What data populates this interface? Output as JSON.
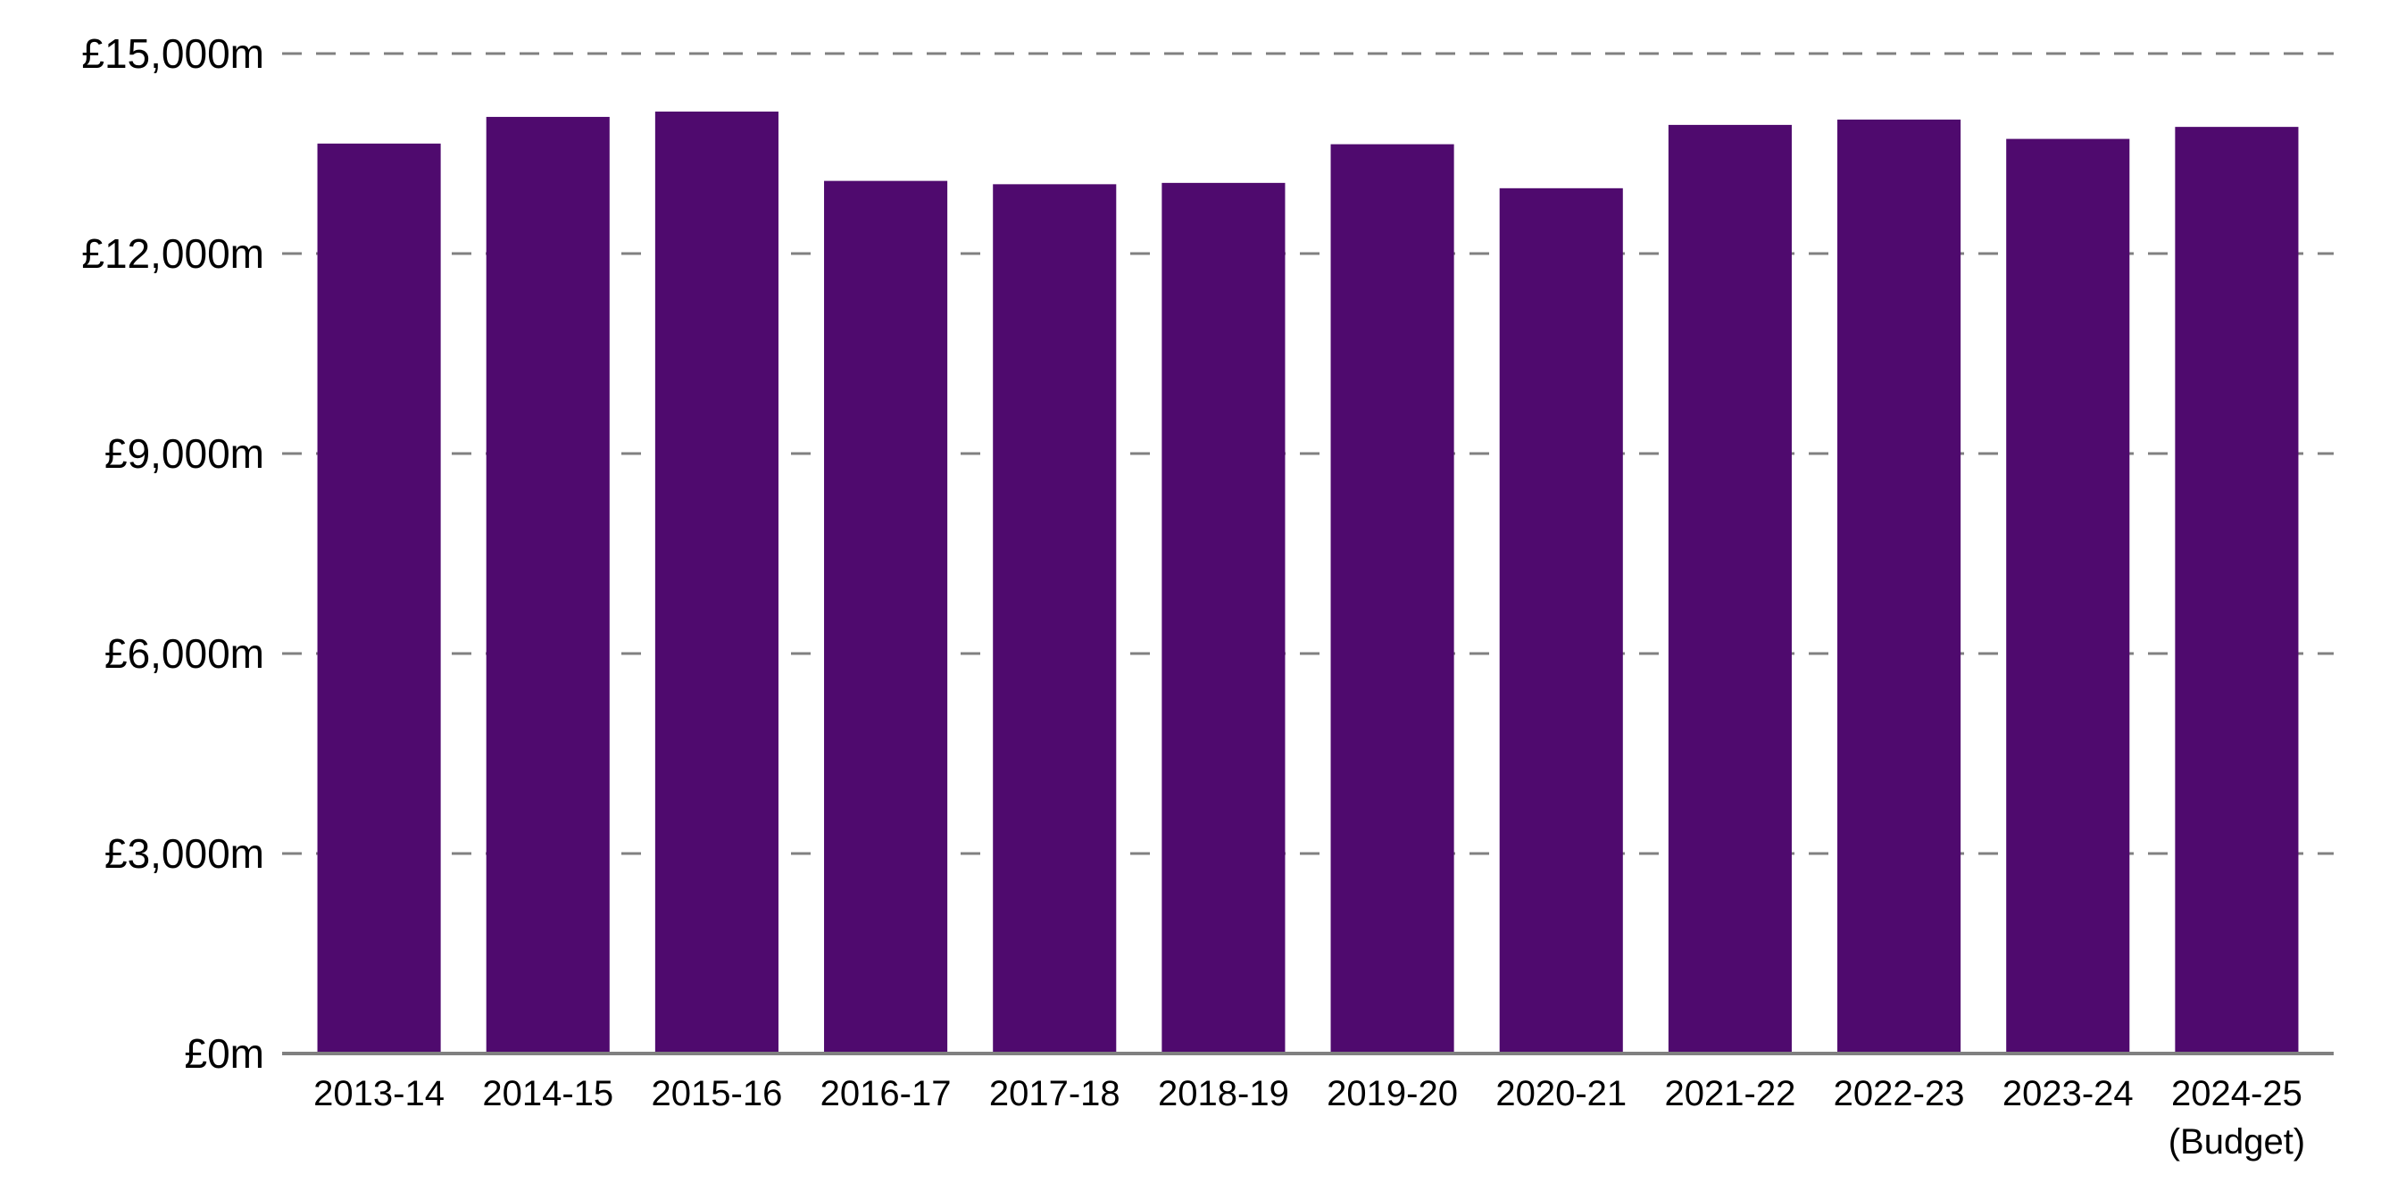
{
  "chart_data": {
    "type": "bar",
    "title": "",
    "xlabel": "",
    "ylabel": "",
    "categories": [
      "2013-14",
      "2014-15",
      "2015-16",
      "2016-17",
      "2017-18",
      "2018-19",
      "2019-20",
      "2020-21",
      "2021-22",
      "2022-23",
      "2023-24",
      "2024-25"
    ],
    "category_sublabels": [
      "",
      "",
      "",
      "",
      "",
      "",
      "",
      "",
      "",
      "",
      "",
      "(Budget)"
    ],
    "values": [
      13650,
      14050,
      14130,
      13090,
      13040,
      13060,
      13640,
      12980,
      13930,
      14010,
      13720,
      13900
    ],
    "ylim": [
      0,
      15000
    ],
    "yticks": [
      0,
      3000,
      6000,
      9000,
      12000,
      15000
    ],
    "ytick_labels": [
      "£0m",
      "£3,000m",
      "£6,000m",
      "£9,000m",
      "£12,000m",
      "£15,000m"
    ],
    "grid": "horizontal-dashed",
    "legend": "none",
    "bar_color": "#4f0a6e",
    "grid_color": "#808080",
    "axis_color": "#808080"
  }
}
